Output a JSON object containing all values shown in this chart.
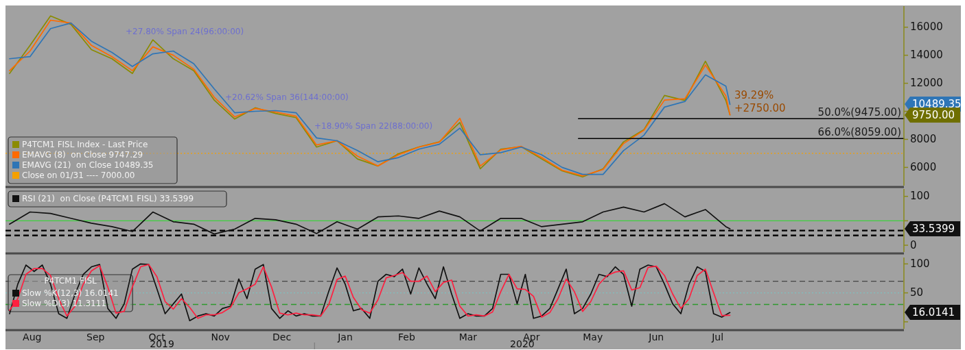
{
  "chart_data": [
    {
      "type": "line",
      "xlim": [
        "2019-08-03",
        "2020-10-15"
      ],
      "ylim": [
        4700,
        17500
      ],
      "yticks": [
        6000,
        8000,
        {
          "value": 10000,
          "label": null
        },
        12000,
        14000,
        16000
      ],
      "tick_labels": "y",
      "legend": "bottom left",
      "x": [
        "2019-08-05",
        "2019-08-15",
        "2019-08-25",
        "2019-09-04",
        "2019-09-14",
        "2019-09-24",
        "2019-10-04",
        "2019-10-14",
        "2019-10-24",
        "2019-11-03",
        "2019-11-13",
        "2019-11-23",
        "2019-12-03",
        "2019-12-13",
        "2019-12-23",
        "2020-01-02",
        "2020-01-12",
        "2020-01-22",
        "2020-02-01",
        "2020-02-11",
        "2020-02-21",
        "2020-03-02",
        "2020-03-12",
        "2020-03-22",
        "2020-04-01",
        "2020-04-11",
        "2020-04-21",
        "2020-05-01",
        "2020-05-11",
        "2020-05-21",
        "2020-05-31",
        "2020-06-10",
        "2020-06-20",
        "2020-06-30",
        "2020-07-10",
        "2020-07-20",
        "2020-07-22"
      ],
      "series": [
        {
          "name": "P4TCM1 FISL Index - Last Price",
          "color": "#8b8b00",
          "values": [
            12700,
            14700,
            16800,
            16200,
            14400,
            13750,
            12700,
            15100,
            13750,
            12900,
            10800,
            9450,
            10250,
            9850,
            9550,
            7450,
            7900,
            6600,
            6100,
            6970,
            7460,
            7820,
            9200,
            5900,
            7300,
            7480,
            6600,
            5750,
            5320,
            5900,
            7820,
            8700,
            11130,
            10780,
            13570,
            10780,
            9750
          ]
        },
        {
          "name": "EMAVG (8)  on Close 9747.29",
          "color": "#ff6a00",
          "values": [
            12900,
            14300,
            16500,
            16300,
            14700,
            13900,
            12900,
            14600,
            14000,
            13000,
            11000,
            9600,
            10200,
            9950,
            9650,
            7600,
            7900,
            6800,
            6100,
            6900,
            7450,
            7800,
            9500,
            6100,
            7250,
            7500,
            6700,
            5800,
            5400,
            5850,
            7700,
            8650,
            10800,
            10900,
            13300,
            11100,
            9747.29
          ]
        },
        {
          "name": "EMAVG (21)  on Close 10489.35",
          "color": "#2e75b6",
          "values": [
            13750,
            13900,
            15900,
            16300,
            15000,
            14200,
            13200,
            14100,
            14300,
            13400,
            11600,
            9900,
            10000,
            10050,
            9900,
            8100,
            7900,
            7200,
            6400,
            6700,
            7300,
            7650,
            8800,
            6900,
            7050,
            7450,
            6900,
            6000,
            5500,
            5500,
            7200,
            8300,
            10300,
            10700,
            12600,
            11800,
            10489.35
          ]
        },
        {
          "color": "#000000",
          "x": [
            "2020-05-09",
            "2020-10-15"
          ],
          "values": [
            9475,
            9475
          ]
        },
        {
          "color": "#000000",
          "x": [
            "2020-05-09",
            "2020-10-15"
          ],
          "values": [
            8059,
            8059
          ]
        }
      ],
      "ref_lines": [
        {
          "axis": "y",
          "value": 7000,
          "label": "Close on 01/31 ---- 7000.00",
          "color": "#f5a000",
          "line_style": "dotted"
        }
      ],
      "annotations": [
        "+27.80% Span 24(96:00:00)",
        "+20.62% Span 36(144:00:00)",
        "+18.90% Span 22(88:00:00)",
        "39.29%",
        "+2750.00",
        {
          "text": "50.0%(9475.00)",
          "x": "2020-10-15",
          "y": 9475
        },
        {
          "text": "66.0%(8059.00)",
          "x": "2020-10-15",
          "y": 8059
        },
        "10489.35",
        "9750.00"
      ]
    },
    {
      "type": "line",
      "xlim": [
        "2019-08-03",
        "2020-10-15"
      ],
      "ylim": [
        -14,
        115
      ],
      "yticks": [
        0,
        {
          "value": 50,
          "label": null
        },
        100
      ],
      "tick_labels": "y",
      "legend": "top left",
      "x": [
        "2019-08-05",
        "2019-08-15",
        "2019-08-25",
        "2019-09-04",
        "2019-09-14",
        "2019-09-24",
        "2019-10-04",
        "2019-10-14",
        "2019-10-24",
        "2019-11-03",
        "2019-11-13",
        "2019-11-23",
        "2019-12-03",
        "2019-12-13",
        "2019-12-23",
        "2020-01-02",
        "2020-01-12",
        "2020-01-22",
        "2020-02-01",
        "2020-02-11",
        "2020-02-21",
        "2020-03-02",
        "2020-03-12",
        "2020-03-22",
        "2020-04-01",
        "2020-04-11",
        "2020-04-21",
        "2020-05-01",
        "2020-05-11",
        "2020-05-21",
        "2020-05-31",
        "2020-06-10",
        "2020-06-20",
        "2020-06-30",
        "2020-07-10",
        "2020-07-20",
        "2020-07-22"
      ],
      "series": [
        {
          "name": "RSI (21)  on Close (P4TCM1 FISL) 33.5399",
          "color": "#111111",
          "values": [
            43,
            68,
            65,
            55,
            45,
            38,
            28,
            68,
            48,
            43,
            23,
            33,
            55,
            52,
            43,
            24,
            48,
            33,
            58,
            60,
            55,
            70,
            58,
            29,
            55,
            55,
            38,
            43,
            48,
            68,
            78,
            68,
            85,
            58,
            73,
            38,
            33.5399
          ]
        }
      ],
      "ref_lines": [
        {
          "axis": "y",
          "value": 50,
          "color": "#3fd13f",
          "line_style": "solid"
        },
        {
          "axis": "y",
          "value": 30,
          "color": "#000000",
          "line_style": "dashed"
        },
        {
          "axis": "y",
          "value": 20,
          "color": "#000000",
          "line_style": "dashed"
        }
      ],
      "annotations": [
        "33.5399"
      ]
    },
    {
      "type": "line",
      "xlim": [
        "2019-08-03",
        "2020-10-15"
      ],
      "ylim": [
        -12,
        111
      ],
      "yticks": [
        {
          "value": 0,
          "label": null
        },
        50,
        100
      ],
      "legend": "left",
      "legend_title": "P4TCM1 FISL",
      "xticks": [
        {
          "value": "2019-08-16",
          "label": "Aug"
        },
        {
          "value": "2019-09-16",
          "label": "Sep"
        },
        {
          "value": "2019-10-16",
          "label": "Oct"
        },
        {
          "value": "2019-11-16",
          "label": "Nov"
        },
        {
          "value": "2019-12-16",
          "label": "Dec"
        },
        {
          "value": "2020-01-16",
          "label": "Jan"
        },
        {
          "value": "2020-02-15",
          "label": "Feb"
        },
        {
          "value": "2020-03-16",
          "label": "Mar"
        },
        {
          "value": "2020-04-16",
          "label": "Apr"
        },
        {
          "value": "2020-05-16",
          "label": "May"
        },
        {
          "value": "2020-06-16",
          "label": "Jun"
        },
        {
          "value": "2020-07-16",
          "label": "Jul"
        }
      ],
      "x": [
        "2019-08-05",
        "2019-08-09",
        "2019-08-13",
        "2019-08-17",
        "2019-08-21",
        "2019-08-25",
        "2019-08-29",
        "2019-09-02",
        "2019-09-06",
        "2019-09-10",
        "2019-09-14",
        "2019-09-18",
        "2019-09-22",
        "2019-09-26",
        "2019-09-30",
        "2019-10-04",
        "2019-10-08",
        "2019-10-12",
        "2019-10-16",
        "2019-10-20",
        "2019-10-24",
        "2019-10-28",
        "2019-11-01",
        "2019-11-05",
        "2019-11-09",
        "2019-11-13",
        "2019-11-17",
        "2019-11-21",
        "2019-11-25",
        "2019-11-29",
        "2019-12-03",
        "2019-12-07",
        "2019-12-11",
        "2019-12-15",
        "2019-12-19",
        "2019-12-23",
        "2019-12-27",
        "2019-12-31",
        "2020-01-04",
        "2020-01-08",
        "2020-01-12",
        "2020-01-16",
        "2020-01-20",
        "2020-01-24",
        "2020-01-28",
        "2020-02-01",
        "2020-02-05",
        "2020-02-09",
        "2020-02-13",
        "2020-02-17",
        "2020-02-21",
        "2020-02-25",
        "2020-02-29",
        "2020-03-04",
        "2020-03-08",
        "2020-03-12",
        "2020-03-16",
        "2020-03-20",
        "2020-03-24",
        "2020-03-28",
        "2020-04-01",
        "2020-04-05",
        "2020-04-09",
        "2020-04-13",
        "2020-04-17",
        "2020-04-21",
        "2020-04-25",
        "2020-04-29",
        "2020-05-03",
        "2020-05-07",
        "2020-05-11",
        "2020-05-15",
        "2020-05-19",
        "2020-05-23",
        "2020-05-27",
        "2020-05-31",
        "2020-06-04",
        "2020-06-08",
        "2020-06-12",
        "2020-06-16",
        "2020-06-20",
        "2020-06-24",
        "2020-06-28",
        "2020-07-02",
        "2020-07-06",
        "2020-07-10",
        "2020-07-14",
        "2020-07-18",
        "2020-07-22"
      ],
      "series": [
        {
          "name": "Slow %K(12,3) 16.0141",
          "color": "#111111",
          "values": [
            14,
            65,
            98,
            87,
            98,
            65,
            14,
            6,
            48,
            82,
            95,
            99,
            23,
            6,
            31,
            91,
            100,
            99,
            57,
            14,
            31,
            48,
            2,
            10,
            14,
            10,
            23,
            27,
            74,
            40,
            91,
            99,
            23,
            6,
            19,
            10,
            14,
            10,
            10,
            53,
            93,
            65,
            19,
            23,
            6,
            70,
            82,
            78,
            91,
            48,
            93,
            65,
            40,
            95,
            48,
            6,
            14,
            10,
            10,
            23,
            82,
            82,
            31,
            82,
            6,
            10,
            23,
            57,
            91,
            14,
            23,
            48,
            82,
            78,
            95,
            82,
            27,
            91,
            98,
            95,
            65,
            31,
            14,
            65,
            95,
            87,
            14,
            8,
            16.0141
          ]
        },
        {
          "name": "Slow %D(3) 11.3111",
          "color": "#ff2040",
          "values": [
            20,
            40,
            82,
            92,
            92,
            80,
            40,
            10,
            27,
            65,
            88,
            97,
            60,
            15,
            18,
            60,
            95,
            99,
            78,
            35,
            22,
            40,
            25,
            6,
            12,
            12,
            16,
            25,
            50,
            57,
            65,
            95,
            60,
            15,
            12,
            15,
            12,
            12,
            10,
            30,
            73,
            79,
            42,
            21,
            15,
            38,
            76,
            80,
            85,
            70,
            70,
            79,
            52,
            68,
            72,
            27,
            10,
            12,
            10,
            17,
            52,
            82,
            57,
            56,
            44,
            8,
            16,
            40,
            74,
            52,
            18,
            35,
            65,
            80,
            86,
            88,
            55,
            59,
            94,
            96,
            80,
            48,
            23,
            40,
            80,
            91,
            50,
            11,
            11.3111
          ]
        }
      ],
      "ref_lines": [
        {
          "axis": "y",
          "value": 70,
          "color": "#444444",
          "line_style": "dashed"
        },
        {
          "axis": "y",
          "value": 50,
          "color": "#7fbfbf",
          "line_style": "dotted"
        },
        {
          "axis": "y",
          "value": 30,
          "color": "#2e9a2e",
          "line_style": "dashed"
        }
      ],
      "annotations": [
        "2019",
        "2020",
        "16.0141"
      ]
    }
  ]
}
